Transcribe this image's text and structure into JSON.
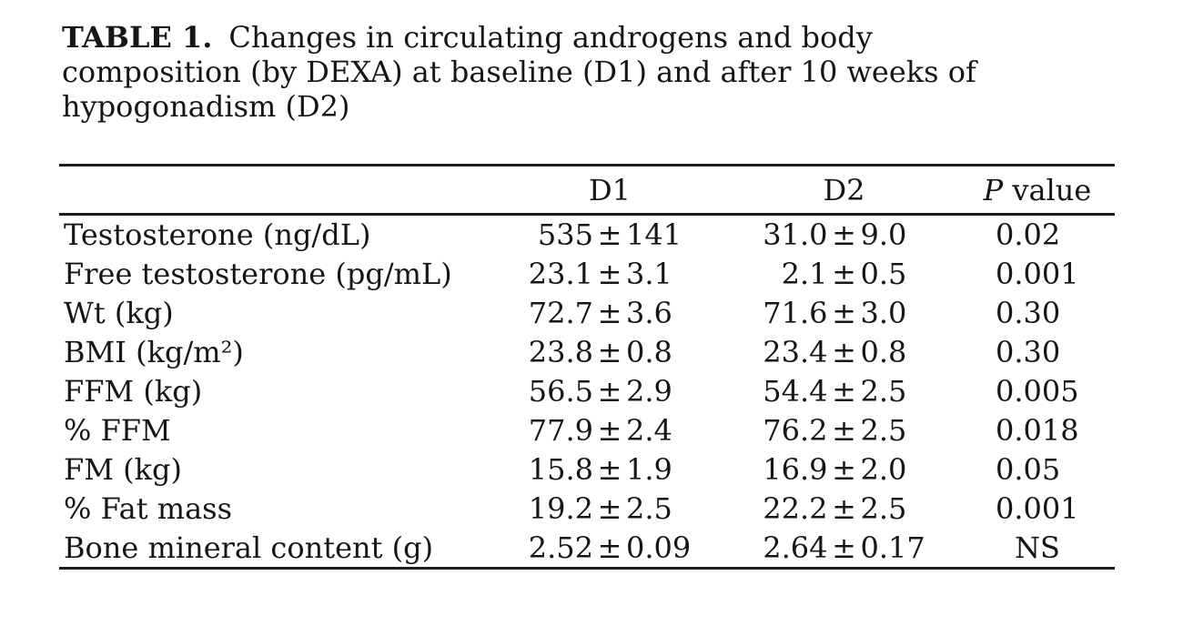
{
  "caption": {
    "tag": "TABLE 1.",
    "lines": [
      "Changes in circulating androgens and body",
      "composition (by DEXA) at baseline (D1) and after 10 weeks of",
      "hypogonadism (D2)"
    ]
  },
  "table": {
    "pm_symbol": "±",
    "columns": [
      {
        "label": ""
      },
      {
        "label": "D1"
      },
      {
        "label": "D2"
      },
      {
        "label": "P value",
        "italic_prefix": "P"
      }
    ],
    "rows": [
      {
        "label": "Testosterone (ng/dL)",
        "d1": {
          "mean": "535",
          "sd": "141"
        },
        "d2": {
          "mean": "31.0",
          "sd": "9.0"
        },
        "p": "0.02"
      },
      {
        "label": "Free testosterone (pg/mL)",
        "d1": {
          "mean": "23.1",
          "sd": "3.1"
        },
        "d2": {
          "mean": "2.1",
          "sd": "0.5"
        },
        "p": "0.001"
      },
      {
        "label": "Wt (kg)",
        "d1": {
          "mean": "72.7",
          "sd": "3.6"
        },
        "d2": {
          "mean": "71.6",
          "sd": "3.0"
        },
        "p": "0.30"
      },
      {
        "label": "BMI (kg/m²)",
        "d1": {
          "mean": "23.8",
          "sd": "0.8"
        },
        "d2": {
          "mean": "23.4",
          "sd": "0.8"
        },
        "p": "0.30"
      },
      {
        "label": "FFM (kg)",
        "d1": {
          "mean": "56.5",
          "sd": "2.9"
        },
        "d2": {
          "mean": "54.4",
          "sd": "2.5"
        },
        "p": "0.005"
      },
      {
        "label": "% FFM",
        "d1": {
          "mean": "77.9",
          "sd": "2.4"
        },
        "d2": {
          "mean": "76.2",
          "sd": "2.5"
        },
        "p": "0.018"
      },
      {
        "label": "FM (kg)",
        "d1": {
          "mean": "15.8",
          "sd": "1.9"
        },
        "d2": {
          "mean": "16.9",
          "sd": "2.0"
        },
        "p": "0.05"
      },
      {
        "label": "% Fat mass",
        "d1": {
          "mean": "19.2",
          "sd": "2.5"
        },
        "d2": {
          "mean": "22.2",
          "sd": "2.5"
        },
        "p": "0.001"
      },
      {
        "label": "Bone mineral content (g)",
        "d1": {
          "mean": "2.52",
          "sd": "0.09"
        },
        "d2": {
          "mean": "2.64",
          "sd": "0.17"
        },
        "p": "NS"
      }
    ]
  }
}
